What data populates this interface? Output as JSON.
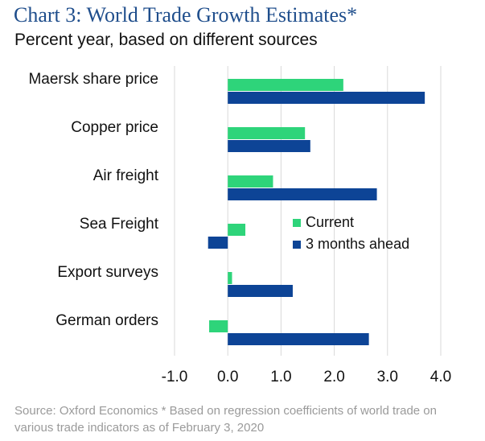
{
  "chart_data": {
    "type": "bar",
    "orientation": "horizontal",
    "title": "Chart 3: World Trade Growth Estimates*",
    "subtitle": "Percent year, based on different sources",
    "categories": [
      "Maersk share price",
      "Copper price",
      "Air freight",
      "Sea Freight",
      "Export surveys",
      "German orders"
    ],
    "series": [
      {
        "name": "Current",
        "color": "#2ed47a",
        "values": [
          2.17,
          1.45,
          0.85,
          0.33,
          0.08,
          -0.35
        ]
      },
      {
        "name": "3 months ahead",
        "color": "#0d4496",
        "values": [
          3.7,
          1.55,
          2.8,
          -0.37,
          1.22,
          2.65
        ]
      }
    ],
    "xlim": [
      -1.0,
      4.0
    ],
    "xticks": [
      "-1.0",
      "0.0",
      "1.0",
      "2.0",
      "3.0",
      "4.0"
    ],
    "grid": true,
    "legend_position": "right-center",
    "source": "Source: Oxford Economics * Based on regression coefficients of world trade on various trade indicators as of February 3, 2020"
  }
}
